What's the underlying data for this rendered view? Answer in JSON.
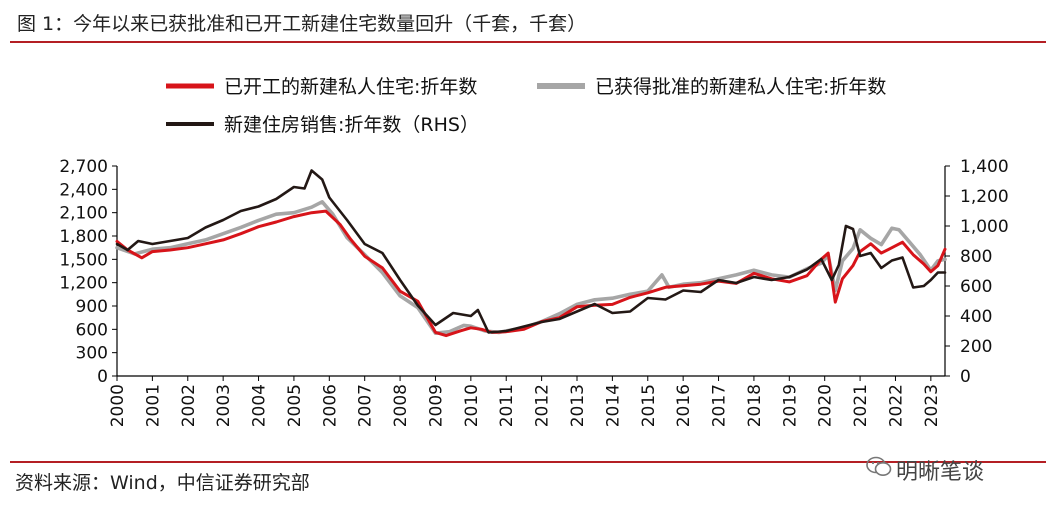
{
  "title": "图 1：今年以来已获批准和已开工新建住宅数量回升（千套，千套）",
  "source": "资料来源：Wind，中信证券研究部",
  "watermark": "明晰笔谈",
  "colors": {
    "red": "#d7141a",
    "gray": "#a6a6a6",
    "black": "#231815",
    "rule": "#b41f24"
  },
  "chart_data": {
    "type": "line",
    "title": "今年以来已获批准和已开工新建住宅数量回升（千套，千套）",
    "legend": [
      "已开工的新建私人住宅:折年数",
      "已获得批准的新建私人住宅:折年数",
      "新建住房销售:折年数（RHS）"
    ],
    "y_left": {
      "min": 0,
      "max": 2700,
      "ticks": [
        "0",
        "300",
        "600",
        "900",
        "1,200",
        "1,500",
        "1,800",
        "2,100",
        "2,400",
        "2,700"
      ]
    },
    "y_right": {
      "min": 0,
      "max": 1400,
      "ticks": [
        "0",
        "200",
        "400",
        "600",
        "800",
        "1,000",
        "1,200",
        "1,400"
      ]
    },
    "x_range": [
      2000,
      2023.4
    ],
    "x_ticks": [
      "2000",
      "2001",
      "2002",
      "2003",
      "2004",
      "2005",
      "2006",
      "2007",
      "2008",
      "2009",
      "2010",
      "2011",
      "2012",
      "2013",
      "2014",
      "2015",
      "2016",
      "2017",
      "2018",
      "2019",
      "2020",
      "2021",
      "2022",
      "2023"
    ],
    "series": [
      {
        "name": "已开工的新建私人住宅:折年数",
        "axis": "left",
        "color": "#d7141a",
        "points": [
          [
            2000.0,
            1730
          ],
          [
            2000.3,
            1620
          ],
          [
            2000.7,
            1520
          ],
          [
            2001.0,
            1600
          ],
          [
            2001.5,
            1620
          ],
          [
            2002.0,
            1650
          ],
          [
            2002.5,
            1700
          ],
          [
            2003.0,
            1750
          ],
          [
            2003.5,
            1830
          ],
          [
            2004.0,
            1920
          ],
          [
            2004.5,
            1980
          ],
          [
            2005.0,
            2050
          ],
          [
            2005.5,
            2100
          ],
          [
            2005.9,
            2120
          ],
          [
            2006.3,
            1950
          ],
          [
            2006.6,
            1760
          ],
          [
            2007.0,
            1540
          ],
          [
            2007.5,
            1390
          ],
          [
            2008.0,
            1090
          ],
          [
            2008.5,
            960
          ],
          [
            2009.0,
            560
          ],
          [
            2009.3,
            520
          ],
          [
            2009.7,
            580
          ],
          [
            2010.0,
            620
          ],
          [
            2010.3,
            600
          ],
          [
            2010.6,
            560
          ],
          [
            2011.0,
            570
          ],
          [
            2011.5,
            600
          ],
          [
            2012.0,
            700
          ],
          [
            2012.5,
            750
          ],
          [
            2013.0,
            890
          ],
          [
            2013.5,
            910
          ],
          [
            2014.0,
            920
          ],
          [
            2014.5,
            1010
          ],
          [
            2015.0,
            1070
          ],
          [
            2015.5,
            1140
          ],
          [
            2016.0,
            1160
          ],
          [
            2016.5,
            1180
          ],
          [
            2017.0,
            1220
          ],
          [
            2017.5,
            1190
          ],
          [
            2018.0,
            1320
          ],
          [
            2018.5,
            1250
          ],
          [
            2019.0,
            1210
          ],
          [
            2019.5,
            1290
          ],
          [
            2019.9,
            1500
          ],
          [
            2020.1,
            1580
          ],
          [
            2020.3,
            950
          ],
          [
            2020.5,
            1250
          ],
          [
            2020.8,
            1420
          ],
          [
            2021.0,
            1600
          ],
          [
            2021.3,
            1700
          ],
          [
            2021.6,
            1580
          ],
          [
            2021.9,
            1650
          ],
          [
            2022.2,
            1720
          ],
          [
            2022.5,
            1560
          ],
          [
            2022.8,
            1440
          ],
          [
            2023.0,
            1340
          ],
          [
            2023.2,
            1420
          ],
          [
            2023.4,
            1630
          ]
        ]
      },
      {
        "name": "已获得批准的新建私人住宅:折年数",
        "axis": "left",
        "color": "#a6a6a6",
        "points": [
          [
            2000.0,
            1650
          ],
          [
            2000.5,
            1570
          ],
          [
            2001.0,
            1630
          ],
          [
            2001.5,
            1650
          ],
          [
            2002.0,
            1700
          ],
          [
            2002.5,
            1750
          ],
          [
            2003.0,
            1830
          ],
          [
            2003.5,
            1910
          ],
          [
            2004.0,
            2000
          ],
          [
            2004.5,
            2080
          ],
          [
            2005.0,
            2100
          ],
          [
            2005.5,
            2170
          ],
          [
            2005.8,
            2240
          ],
          [
            2006.1,
            2080
          ],
          [
            2006.5,
            1780
          ],
          [
            2007.0,
            1560
          ],
          [
            2007.5,
            1330
          ],
          [
            2008.0,
            1030
          ],
          [
            2008.5,
            880
          ],
          [
            2009.0,
            550
          ],
          [
            2009.4,
            570
          ],
          [
            2009.8,
            650
          ],
          [
            2010.0,
            640
          ],
          [
            2010.4,
            580
          ],
          [
            2010.8,
            560
          ],
          [
            2011.0,
            580
          ],
          [
            2011.5,
            620
          ],
          [
            2012.0,
            700
          ],
          [
            2012.5,
            800
          ],
          [
            2013.0,
            920
          ],
          [
            2013.5,
            980
          ],
          [
            2014.0,
            1000
          ],
          [
            2014.5,
            1050
          ],
          [
            2015.0,
            1090
          ],
          [
            2015.4,
            1300
          ],
          [
            2015.6,
            1140
          ],
          [
            2016.0,
            1180
          ],
          [
            2016.5,
            1200
          ],
          [
            2017.0,
            1250
          ],
          [
            2017.5,
            1300
          ],
          [
            2018.0,
            1360
          ],
          [
            2018.5,
            1300
          ],
          [
            2019.0,
            1270
          ],
          [
            2019.5,
            1380
          ],
          [
            2019.9,
            1450
          ],
          [
            2020.1,
            1550
          ],
          [
            2020.3,
            1100
          ],
          [
            2020.5,
            1480
          ],
          [
            2020.8,
            1640
          ],
          [
            2021.0,
            1880
          ],
          [
            2021.3,
            1770
          ],
          [
            2021.6,
            1690
          ],
          [
            2021.9,
            1900
          ],
          [
            2022.1,
            1880
          ],
          [
            2022.4,
            1720
          ],
          [
            2022.7,
            1560
          ],
          [
            2023.0,
            1360
          ],
          [
            2023.2,
            1480
          ],
          [
            2023.4,
            1500
          ]
        ]
      },
      {
        "name": "新建住房销售:折年数（RHS）",
        "axis": "right",
        "color": "#231815",
        "points": [
          [
            2000.0,
            880
          ],
          [
            2000.3,
            840
          ],
          [
            2000.6,
            900
          ],
          [
            2001.0,
            880
          ],
          [
            2001.5,
            900
          ],
          [
            2002.0,
            920
          ],
          [
            2002.5,
            990
          ],
          [
            2003.0,
            1040
          ],
          [
            2003.5,
            1100
          ],
          [
            2004.0,
            1130
          ],
          [
            2004.5,
            1180
          ],
          [
            2005.0,
            1260
          ],
          [
            2005.3,
            1250
          ],
          [
            2005.5,
            1370
          ],
          [
            2005.8,
            1310
          ],
          [
            2006.0,
            1190
          ],
          [
            2006.5,
            1040
          ],
          [
            2007.0,
            880
          ],
          [
            2007.5,
            820
          ],
          [
            2008.0,
            640
          ],
          [
            2008.5,
            470
          ],
          [
            2009.0,
            340
          ],
          [
            2009.5,
            420
          ],
          [
            2010.0,
            400
          ],
          [
            2010.2,
            440
          ],
          [
            2010.5,
            290
          ],
          [
            2011.0,
            300
          ],
          [
            2011.5,
            330
          ],
          [
            2012.0,
            360
          ],
          [
            2012.5,
            380
          ],
          [
            2013.0,
            430
          ],
          [
            2013.5,
            480
          ],
          [
            2014.0,
            420
          ],
          [
            2014.5,
            430
          ],
          [
            2015.0,
            520
          ],
          [
            2015.5,
            510
          ],
          [
            2016.0,
            570
          ],
          [
            2016.5,
            560
          ],
          [
            2017.0,
            640
          ],
          [
            2017.5,
            620
          ],
          [
            2018.0,
            660
          ],
          [
            2018.5,
            640
          ],
          [
            2019.0,
            660
          ],
          [
            2019.5,
            710
          ],
          [
            2019.9,
            780
          ],
          [
            2020.2,
            640
          ],
          [
            2020.4,
            740
          ],
          [
            2020.6,
            1000
          ],
          [
            2020.8,
            980
          ],
          [
            2021.0,
            800
          ],
          [
            2021.3,
            820
          ],
          [
            2021.6,
            720
          ],
          [
            2021.9,
            770
          ],
          [
            2022.2,
            790
          ],
          [
            2022.5,
            590
          ],
          [
            2022.8,
            600
          ],
          [
            2023.0,
            640
          ],
          [
            2023.2,
            690
          ],
          [
            2023.4,
            690
          ]
        ]
      }
    ]
  }
}
